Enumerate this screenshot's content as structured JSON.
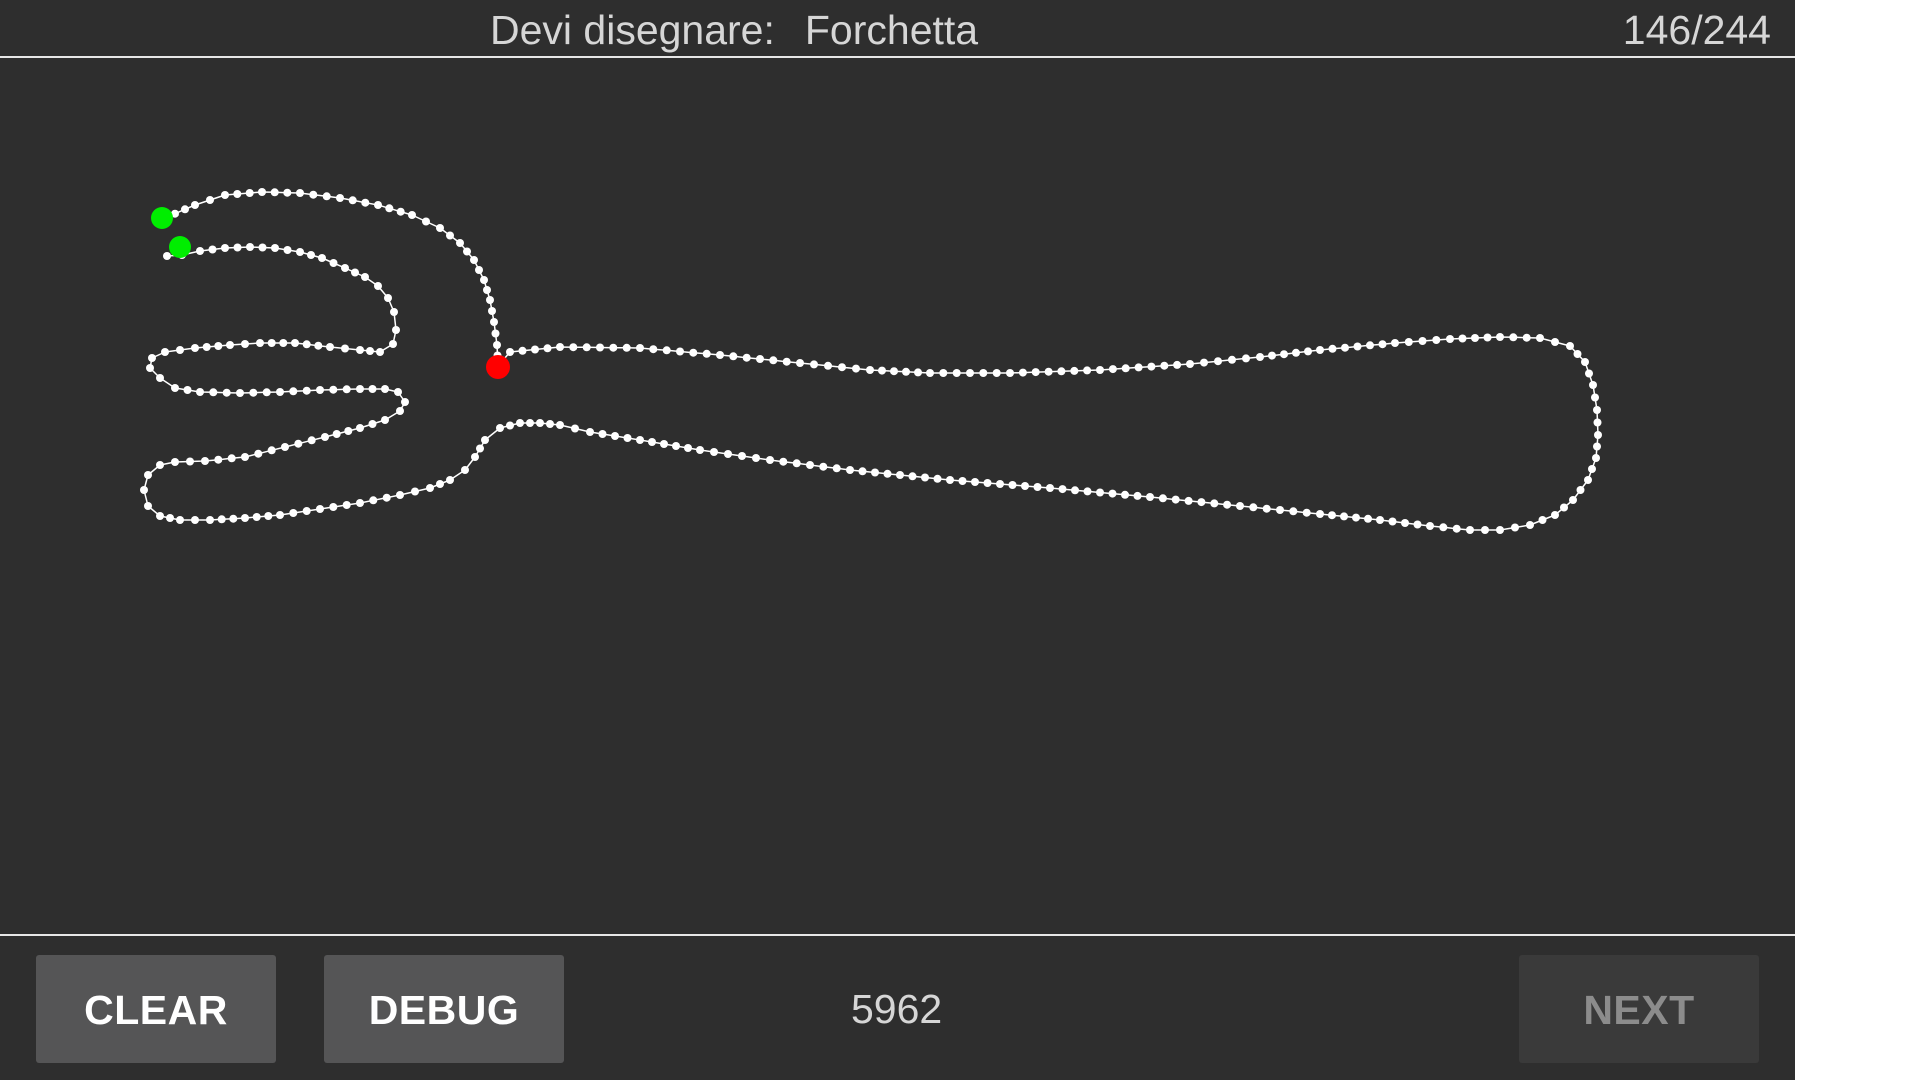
{
  "header": {
    "prompt_label": "Devi disegnare:",
    "target_word": "Forchetta",
    "progress": "146/244"
  },
  "canvas": {
    "stroke_color": "#ffffff",
    "start_marker_color": "#00ee00",
    "end_marker_color": "#ff0000"
  },
  "footer": {
    "clear_label": "CLEAR",
    "debug_label": "DEBUG",
    "score": "5962",
    "next_label": "NEXT"
  }
}
